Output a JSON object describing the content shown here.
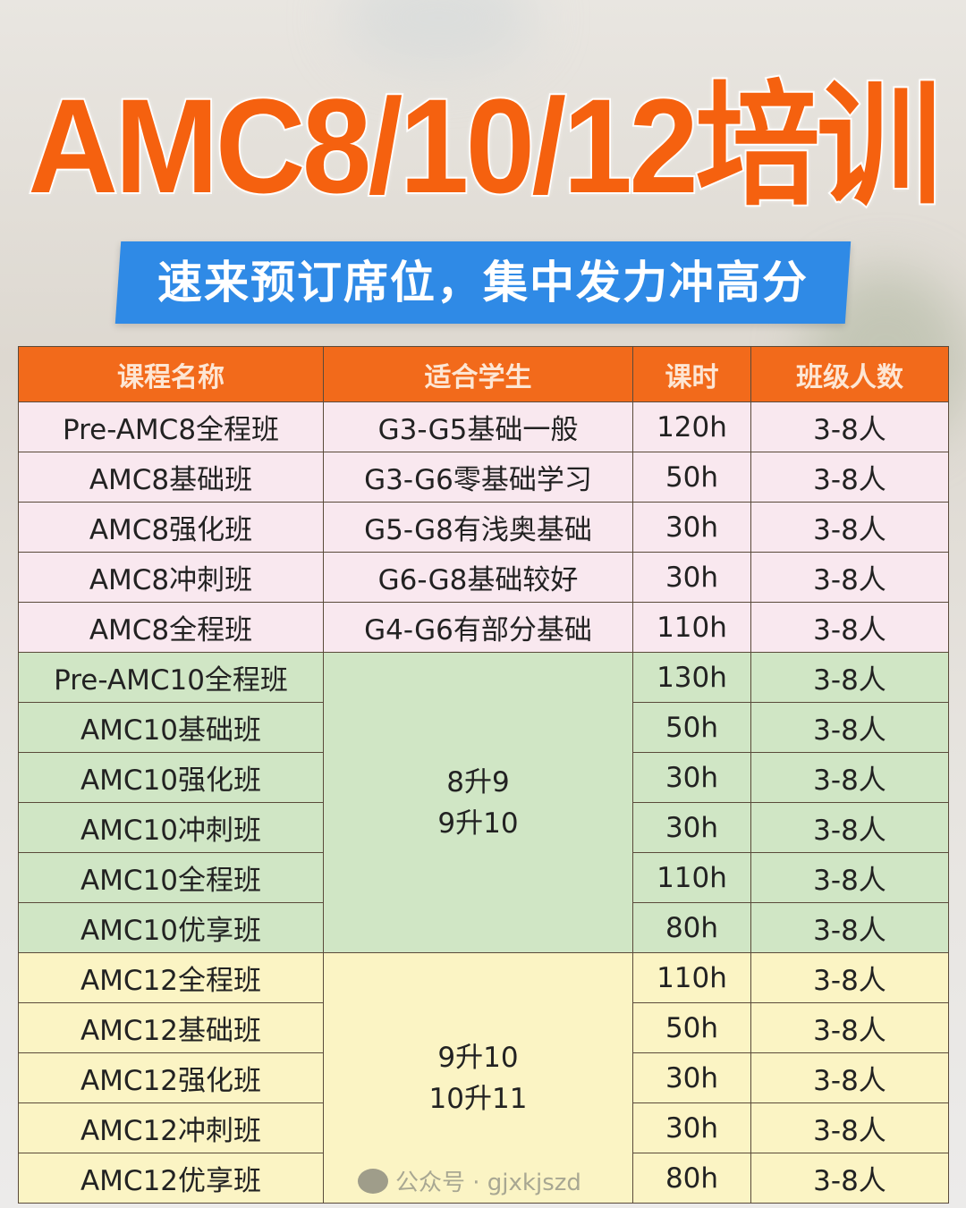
{
  "title": "AMC8/10/12培训",
  "subtitle": "速来预订席位，集中发力冲高分",
  "colors": {
    "title": "#f5610f",
    "banner": "#2f8ae6",
    "header": "#f26a1b",
    "amc8": "#f9e8ef",
    "amc10": "#d0e6c5",
    "amc12": "#fbf4c4"
  },
  "table": {
    "headers": [
      "课程名称",
      "适合学生",
      "课时",
      "班级人数"
    ],
    "groups": [
      {
        "tone": "pink",
        "students_merged": null,
        "rows": [
          {
            "name": "Pre-AMC8全程班",
            "students": "G3-G5基础一般",
            "hours": "120h",
            "size": "3-8人"
          },
          {
            "name": "AMC8基础班",
            "students": "G3-G6零基础学习",
            "hours": "50h",
            "size": "3-8人"
          },
          {
            "name": "AMC8强化班",
            "students": "G5-G8有浅奥基础",
            "hours": "30h",
            "size": "3-8人"
          },
          {
            "name": "AMC8冲刺班",
            "students": "G6-G8基础较好",
            "hours": "30h",
            "size": "3-8人"
          },
          {
            "name": "AMC8全程班",
            "students": "G4-G6有部分基础",
            "hours": "110h",
            "size": "3-8人"
          }
        ]
      },
      {
        "tone": "green",
        "students_merged": [
          "8升9",
          "9升10"
        ],
        "rows": [
          {
            "name": "Pre-AMC10全程班",
            "hours": "130h",
            "size": "3-8人"
          },
          {
            "name": "AMC10基础班",
            "hours": "50h",
            "size": "3-8人"
          },
          {
            "name": "AMC10强化班",
            "hours": "30h",
            "size": "3-8人"
          },
          {
            "name": "AMC10冲刺班",
            "hours": "30h",
            "size": "3-8人"
          },
          {
            "name": "AMC10全程班",
            "hours": "110h",
            "size": "3-8人"
          },
          {
            "name": "AMC10优享班",
            "hours": "80h",
            "size": "3-8人"
          }
        ]
      },
      {
        "tone": "yellow",
        "students_merged": [
          "9升10",
          "10升11"
        ],
        "rows": [
          {
            "name": "AMC12全程班",
            "hours": "110h",
            "size": "3-8人"
          },
          {
            "name": "AMC12基础班",
            "hours": "50h",
            "size": "3-8人"
          },
          {
            "name": "AMC12强化班",
            "hours": "30h",
            "size": "3-8人"
          },
          {
            "name": "AMC12冲刺班",
            "hours": "30h",
            "size": "3-8人"
          },
          {
            "name": "AMC12优享班",
            "hours": "80h",
            "size": "3-8人"
          }
        ]
      }
    ]
  },
  "watermark": {
    "icon": "wechat-icon",
    "text": "公众号 · gjxkjszd"
  }
}
